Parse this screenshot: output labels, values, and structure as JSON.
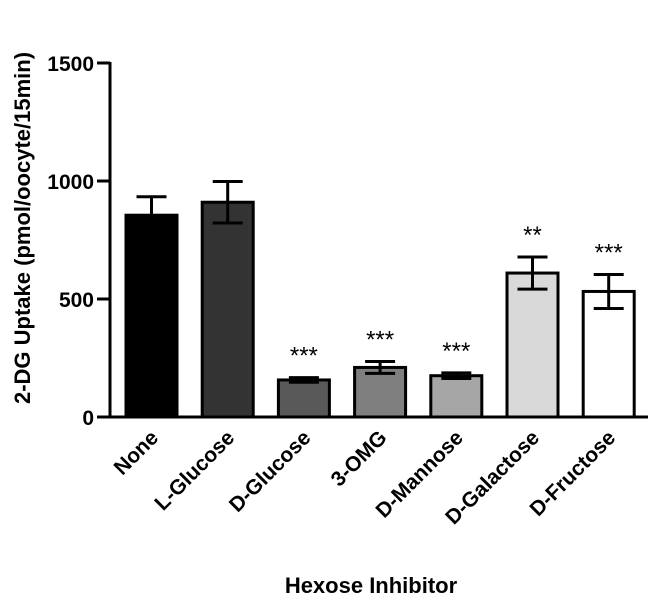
{
  "chart_data": {
    "type": "bar",
    "title": "",
    "xlabel": "Hexose Inhibitor",
    "ylabel": "2-DG  Uptake (pmol/oocyte/15min)",
    "ylim": [
      0,
      1500
    ],
    "yticks": [
      0,
      500,
      1000,
      1500
    ],
    "grid": false,
    "categories": [
      "None",
      "L-Glucose",
      "D-Glucose",
      "3-OMG",
      "D-Mannose",
      "D-Galactose",
      "D-Fructose"
    ],
    "values": [
      855,
      910,
      157,
      210,
      175,
      610,
      532
    ],
    "errors": [
      78,
      88,
      10,
      25,
      12,
      68,
      72
    ],
    "significance": [
      "",
      "",
      "***",
      "***",
      "***",
      "**",
      "***"
    ],
    "bar_colors": [
      "#000000",
      "#333333",
      "#595959",
      "#7f7f7f",
      "#a6a6a6",
      "#d9d9d9",
      "#ffffff"
    ]
  }
}
